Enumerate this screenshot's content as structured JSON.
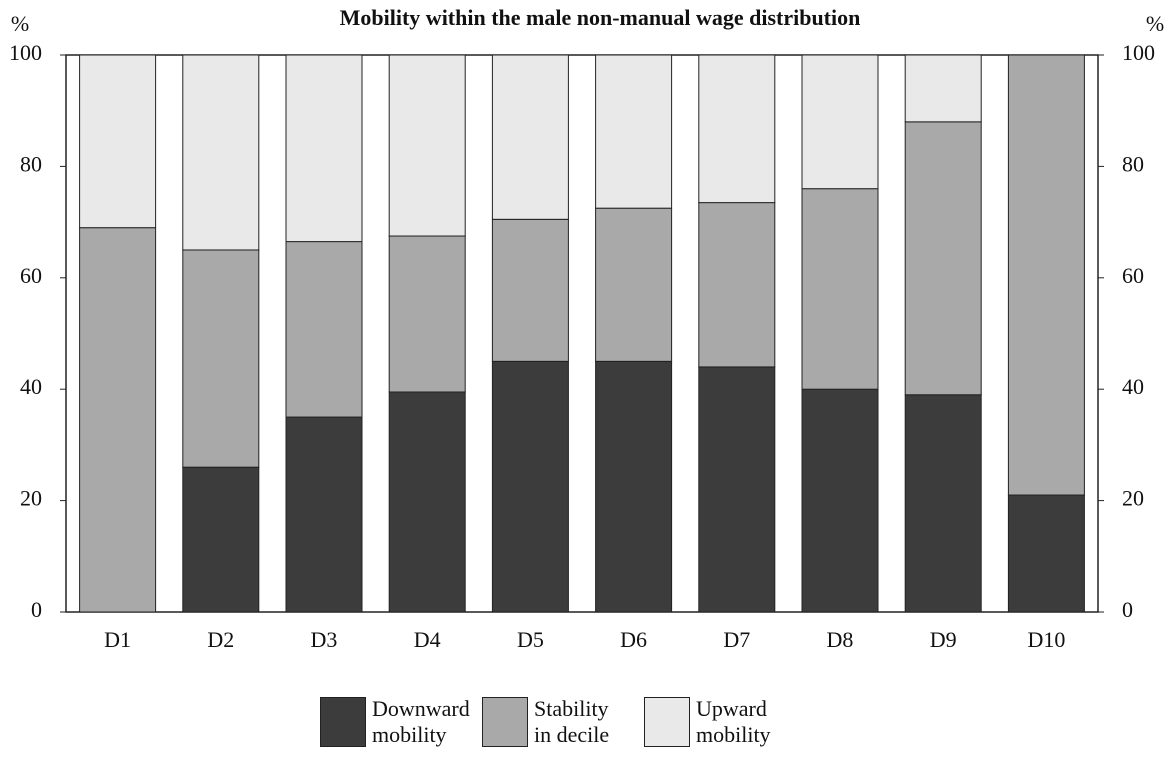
{
  "chart_data": {
    "type": "stacked-bar",
    "title": "Mobility  within the  male non-manual wage distribution",
    "y_label": "%",
    "y2_label": "%",
    "categories": [
      "D1",
      "D2",
      "D3",
      "D4",
      "D5",
      "D6",
      "D7",
      "D8",
      "D9",
      "D10"
    ],
    "series": [
      {
        "name": "Downward mobility",
        "color": "#3c3c3c",
        "values": [
          0,
          26,
          35,
          39.5,
          45,
          45,
          44,
          40,
          39,
          21
        ]
      },
      {
        "name": "Stability in decile",
        "color": "#a9a9a9",
        "values": [
          69,
          39,
          31.5,
          28,
          25.5,
          27.5,
          29.5,
          36,
          49,
          79
        ]
      },
      {
        "name": "Upward mobility",
        "color": "#e9e9e9",
        "values": [
          31,
          35,
          33.5,
          32.5,
          29.5,
          27.5,
          26.5,
          24,
          12,
          0
        ]
      }
    ],
    "ylim": [
      0,
      100
    ],
    "yticks": [
      0,
      20,
      40,
      60,
      80,
      100
    ],
    "y2lim": [
      0,
      100
    ],
    "y2ticks": [
      0,
      20,
      40,
      60,
      80,
      100
    ]
  }
}
